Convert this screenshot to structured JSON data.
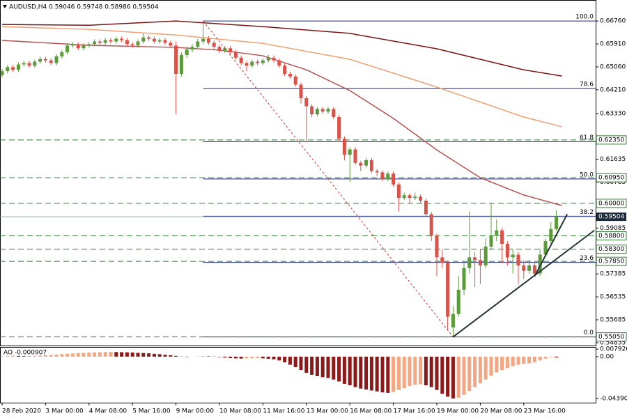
{
  "chart_data": {
    "type": "candlestick",
    "title": "AUDUSD,H4  0.59046 0.59748 0.58986 0.59504",
    "ylim": [
      0.5473,
      0.6746
    ],
    "yticks": [
      {
        "value": 0.6676,
        "label": "0.66760"
      },
      {
        "value": 0.6591,
        "label": "0.65910"
      },
      {
        "value": 0.6506,
        "label": "0.65060"
      },
      {
        "value": 0.6421,
        "label": "0.64210"
      },
      {
        "value": 0.6333,
        "label": "0.63330"
      },
      {
        "value": 0.61635,
        "label": "0.61635"
      },
      {
        "value": 0.60785,
        "label": "0.60785"
      },
      {
        "value": 0.59085,
        "label": "0.59085"
      },
      {
        "value": 0.57385,
        "label": "0.57385"
      },
      {
        "value": 0.56535,
        "label": "0.56535"
      },
      {
        "value": 0.55685,
        "label": "0.55685"
      },
      {
        "value": 0.54835,
        "label": "0.54835"
      }
    ],
    "up_color": "#5b9b3a",
    "down_color": "#d8534a",
    "candles": [
      [
        0.6475,
        0.6498,
        0.6467,
        0.649
      ],
      [
        0.649,
        0.6513,
        0.6482,
        0.6505
      ],
      [
        0.6505,
        0.6513,
        0.6487,
        0.6495
      ],
      [
        0.6495,
        0.6523,
        0.6487,
        0.6515
      ],
      [
        0.6515,
        0.6528,
        0.6507,
        0.652
      ],
      [
        0.652,
        0.6528,
        0.6502,
        0.651
      ],
      [
        0.651,
        0.6533,
        0.6502,
        0.6525
      ],
      [
        0.6525,
        0.6543,
        0.6517,
        0.6535
      ],
      [
        0.6535,
        0.6543,
        0.6522,
        0.653
      ],
      [
        0.653,
        0.6538,
        0.6512,
        0.652
      ],
      [
        0.652,
        0.6553,
        0.6512,
        0.6545
      ],
      [
        0.6545,
        0.6568,
        0.6537,
        0.656
      ],
      [
        0.656,
        0.6593,
        0.6552,
        0.6585
      ],
      [
        0.6585,
        0.6598,
        0.6577,
        0.659
      ],
      [
        0.659,
        0.6598,
        0.6567,
        0.6575
      ],
      [
        0.6575,
        0.6593,
        0.6567,
        0.6585
      ],
      [
        0.6585,
        0.6598,
        0.6577,
        0.659
      ],
      [
        0.659,
        0.6608,
        0.6582,
        0.66
      ],
      [
        0.66,
        0.6608,
        0.6587,
        0.6595
      ],
      [
        0.6595,
        0.6613,
        0.6587,
        0.6605
      ],
      [
        0.6605,
        0.6613,
        0.6592,
        0.66
      ],
      [
        0.66,
        0.6618,
        0.6592,
        0.661
      ],
      [
        0.661,
        0.6618,
        0.6597,
        0.6605
      ],
      [
        0.6605,
        0.6613,
        0.6582,
        0.659
      ],
      [
        0.659,
        0.6598,
        0.6577,
        0.6585
      ],
      [
        0.6585,
        0.6608,
        0.6577,
        0.66
      ],
      [
        0.66,
        0.663,
        0.6592,
        0.6615
      ],
      [
        0.6615,
        0.6623,
        0.6602,
        0.661
      ],
      [
        0.661,
        0.6618,
        0.6592,
        0.66
      ],
      [
        0.66,
        0.6613,
        0.6592,
        0.6605
      ],
      [
        0.6605,
        0.6613,
        0.6587,
        0.6595
      ],
      [
        0.6595,
        0.6603,
        0.6577,
        0.6585
      ],
      [
        0.6585,
        0.66,
        0.633,
        0.648
      ],
      [
        0.648,
        0.656,
        0.647,
        0.655
      ],
      [
        0.655,
        0.658,
        0.654,
        0.657
      ],
      [
        0.657,
        0.659,
        0.656,
        0.658
      ],
      [
        0.658,
        0.661,
        0.6572,
        0.66
      ],
      [
        0.66,
        0.6676,
        0.659,
        0.661
      ],
      [
        0.661,
        0.662,
        0.6587,
        0.6595
      ],
      [
        0.6595,
        0.6603,
        0.6572,
        0.658
      ],
      [
        0.658,
        0.6588,
        0.6557,
        0.6565
      ],
      [
        0.6565,
        0.6583,
        0.6557,
        0.6575
      ],
      [
        0.6575,
        0.6583,
        0.6552,
        0.656
      ],
      [
        0.656,
        0.6568,
        0.6532,
        0.654
      ],
      [
        0.654,
        0.6548,
        0.6512,
        0.652
      ],
      [
        0.652,
        0.6528,
        0.649,
        0.651
      ],
      [
        0.651,
        0.6533,
        0.6502,
        0.6525
      ],
      [
        0.6525,
        0.6533,
        0.6512,
        0.652
      ],
      [
        0.652,
        0.6538,
        0.6512,
        0.653
      ],
      [
        0.653,
        0.655,
        0.6522,
        0.654
      ],
      [
        0.654,
        0.6548,
        0.6522,
        0.653
      ],
      [
        0.653,
        0.6538,
        0.6502,
        0.651
      ],
      [
        0.651,
        0.6518,
        0.6472,
        0.648
      ],
      [
        0.648,
        0.6488,
        0.6462,
        0.647
      ],
      [
        0.647,
        0.6478,
        0.6432,
        0.644
      ],
      [
        0.644,
        0.6448,
        0.637,
        0.639
      ],
      [
        0.639,
        0.6398,
        0.623,
        0.636
      ],
      [
        0.636,
        0.6368,
        0.632,
        0.633
      ],
      [
        0.633,
        0.6358,
        0.6322,
        0.635
      ],
      [
        0.635,
        0.6358,
        0.6332,
        0.634
      ],
      [
        0.634,
        0.6358,
        0.6332,
        0.635
      ],
      [
        0.635,
        0.6358,
        0.6312,
        0.632
      ],
      [
        0.632,
        0.6328,
        0.6232,
        0.624
      ],
      [
        0.624,
        0.6248,
        0.616,
        0.618
      ],
      [
        0.618,
        0.6208,
        0.608,
        0.62
      ],
      [
        0.62,
        0.6208,
        0.6142,
        0.615
      ],
      [
        0.615,
        0.6158,
        0.612,
        0.614
      ],
      [
        0.614,
        0.6168,
        0.6132,
        0.616
      ],
      [
        0.616,
        0.6168,
        0.6112,
        0.612
      ],
      [
        0.612,
        0.6128,
        0.61,
        0.6115
      ],
      [
        0.6115,
        0.6123,
        0.6082,
        0.609
      ],
      [
        0.609,
        0.6118,
        0.6082,
        0.611
      ],
      [
        0.611,
        0.6118,
        0.6062,
        0.607
      ],
      [
        0.607,
        0.6078,
        0.597,
        0.602
      ],
      [
        0.602,
        0.604,
        0.6012,
        0.603
      ],
      [
        0.603,
        0.6038,
        0.6,
        0.602
      ],
      [
        0.602,
        0.604,
        0.6012,
        0.6025
      ],
      [
        0.6025,
        0.6033,
        0.6002,
        0.601
      ],
      [
        0.601,
        0.6018,
        0.595,
        0.596
      ],
      [
        0.596,
        0.5968,
        0.586,
        0.588
      ],
      [
        0.588,
        0.5888,
        0.573,
        0.58
      ],
      [
        0.58,
        0.583,
        0.576,
        0.578
      ],
      [
        0.578,
        0.5788,
        0.553,
        0.558
      ],
      [
        0.554,
        0.562,
        0.5505,
        0.559
      ],
      [
        0.559,
        0.573,
        0.558,
        0.568
      ],
      [
        0.568,
        0.578,
        0.566,
        0.576
      ],
      [
        0.576,
        0.597,
        0.574,
        0.58
      ],
      [
        0.58,
        0.582,
        0.569,
        0.579
      ],
      [
        0.579,
        0.583,
        0.57,
        0.577
      ],
      [
        0.577,
        0.587,
        0.576,
        0.584
      ],
      [
        0.584,
        0.6,
        0.583,
        0.588
      ],
      [
        0.588,
        0.594,
        0.586,
        0.59
      ],
      [
        0.59,
        0.591,
        0.578,
        0.585
      ],
      [
        0.585,
        0.586,
        0.577,
        0.58
      ],
      [
        0.58,
        0.583,
        0.574,
        0.581
      ],
      [
        0.581,
        0.582,
        0.57,
        0.577
      ],
      [
        0.577,
        0.579,
        0.572,
        0.575
      ],
      [
        0.575,
        0.579,
        0.574,
        0.577
      ],
      [
        0.577,
        0.578,
        0.573,
        0.574
      ],
      [
        0.574,
        0.583,
        0.573,
        0.581
      ],
      [
        0.581,
        0.587,
        0.58,
        0.586
      ],
      [
        0.586,
        0.593,
        0.585,
        0.5905
      ],
      [
        0.59046,
        0.59748,
        0.58986,
        0.59504
      ]
    ],
    "time_labels": [
      {
        "index": 0,
        "label": "28 Feb 2020"
      },
      {
        "index": 8,
        "label": "3 Mar 00:00"
      },
      {
        "index": 16,
        "label": "4 Mar 08:00"
      },
      {
        "index": 24,
        "label": "5 Mar 16:00"
      },
      {
        "index": 32,
        "label": "9 Mar 00:00"
      },
      {
        "index": 40,
        "label": "10 Mar 08:00"
      },
      {
        "index": 48,
        "label": "11 Mar 16:00"
      },
      {
        "index": 56,
        "label": "13 Mar 00:00"
      },
      {
        "index": 64,
        "label": "16 Mar 08:00"
      },
      {
        "index": 72,
        "label": "17 Mar 16:00"
      },
      {
        "index": 80,
        "label": "19 Mar 00:00"
      },
      {
        "index": 88,
        "label": "20 Mar 08:00"
      },
      {
        "index": 96,
        "label": "23 Mar 16:00"
      }
    ],
    "ma_lines": [
      {
        "color": "#7a1414",
        "x": [
          0,
          16,
          32,
          48,
          64,
          80,
          96,
          103
        ],
        "values": [
          0.6663,
          0.666,
          0.6676,
          0.6655,
          0.663,
          0.6573,
          0.6495,
          0.6472
        ]
      },
      {
        "color": "#f0a070",
        "x": [
          0,
          16,
          32,
          48,
          64,
          80,
          96,
          103
        ],
        "values": [
          0.6655,
          0.6645,
          0.6624,
          0.6593,
          0.6534,
          0.6431,
          0.632,
          0.6284
        ]
      },
      {
        "color": "#b45050",
        "x": [
          0,
          16,
          32,
          40,
          48,
          56,
          64,
          72,
          80,
          88,
          96,
          103
        ],
        "values": [
          0.6604,
          0.6586,
          0.6578,
          0.6568,
          0.6547,
          0.6495,
          0.6418,
          0.6315,
          0.6198,
          0.6095,
          0.6031,
          0.5992
        ]
      }
    ],
    "levels": [
      {
        "value": 0.6235,
        "label": "0.62350"
      },
      {
        "value": 0.6095,
        "label": "0.60950"
      },
      {
        "value": 0.6,
        "label": "0.60000"
      },
      {
        "value": 0.588,
        "label": "0.58800"
      },
      {
        "value": 0.583,
        "label": "0.58300"
      },
      {
        "value": 0.5785,
        "label": "0.57850"
      },
      {
        "value": 0.5505,
        "label": "0.55050"
      }
    ],
    "level_color": "#2e7d32",
    "fibo": {
      "high": 0.6676,
      "low": 0.5505,
      "start": 37,
      "color": "#1a237e",
      "levels": [
        {
          "value": 100,
          "label": "100.0"
        },
        {
          "value": 78.6,
          "label": "78.6"
        },
        {
          "value": 61.8,
          "label": "61.8"
        },
        {
          "value": 50,
          "label": "50.0"
        },
        {
          "value": 38.2,
          "label": "38.2"
        },
        {
          "value": 23.6,
          "label": "23.6"
        },
        {
          "value": 0,
          "label": "0.0"
        }
      ]
    },
    "trendlines": [
      {
        "color": "#263238",
        "dashed": false,
        "x": [
          83,
          109
        ],
        "values": [
          0.5505,
          0.59
        ]
      },
      {
        "color": "#263238",
        "dashed": false,
        "x": [
          98,
          104
        ],
        "values": [
          0.573,
          0.596
        ]
      },
      {
        "color": "#d32f2f",
        "dashed": true,
        "x": [
          37,
          83
        ],
        "values": [
          0.6676,
          0.5505
        ]
      }
    ],
    "ao": {
      "title": "AO -0.000907",
      "ylim": [
        -0.0483,
        0.0102
      ],
      "yticks": [
        {
          "value": 0.007926,
          "label": "0.007926"
        },
        {
          "value": 0,
          "label": "0.00"
        },
        {
          "value": -0.043908,
          "label": "-0.043908"
        }
      ],
      "up_color": "#f4a582",
      "down_color": "#8b1a1a",
      "values": [
        0.0005,
        0.0008,
        0.001,
        0.0008,
        0.0006,
        0.0007,
        0.0009,
        0.0012,
        0.0015,
        0.0018,
        0.0022,
        0.0026,
        0.003,
        0.0034,
        0.0038,
        0.004,
        0.0042,
        0.0044,
        0.0046,
        0.0048,
        0.005,
        0.0049,
        0.0047,
        0.0045,
        0.0043,
        0.004,
        0.0038,
        0.0035,
        0.003,
        0.0026,
        0.002,
        0.0015,
        0.0008,
        0.0002,
        -0.0003,
        -0.0001,
        0.0003,
        0.0006,
        0.0004,
        0.0002,
        -0.0004,
        -0.001,
        -0.0015,
        -0.0018,
        -0.002,
        -0.0019,
        -0.0017,
        -0.0016,
        -0.0018,
        -0.0022,
        -0.0028,
        -0.004,
        -0.006,
        -0.0085,
        -0.011,
        -0.014,
        -0.017,
        -0.019,
        -0.0205,
        -0.0215,
        -0.0225,
        -0.024,
        -0.026,
        -0.0285,
        -0.03,
        -0.032,
        -0.0335,
        -0.0345,
        -0.0355,
        -0.0365,
        -0.0375,
        -0.038,
        -0.037,
        -0.035,
        -0.033,
        -0.031,
        -0.0295,
        -0.029,
        -0.03,
        -0.032,
        -0.035,
        -0.039,
        -0.042,
        -0.0439,
        -0.043,
        -0.04,
        -0.036,
        -0.032,
        -0.028,
        -0.024,
        -0.02,
        -0.0165,
        -0.014,
        -0.012,
        -0.01,
        -0.0085,
        -0.0075,
        -0.007,
        -0.006,
        -0.004,
        -0.002,
        -0.0005,
        -0.000907
      ]
    }
  }
}
